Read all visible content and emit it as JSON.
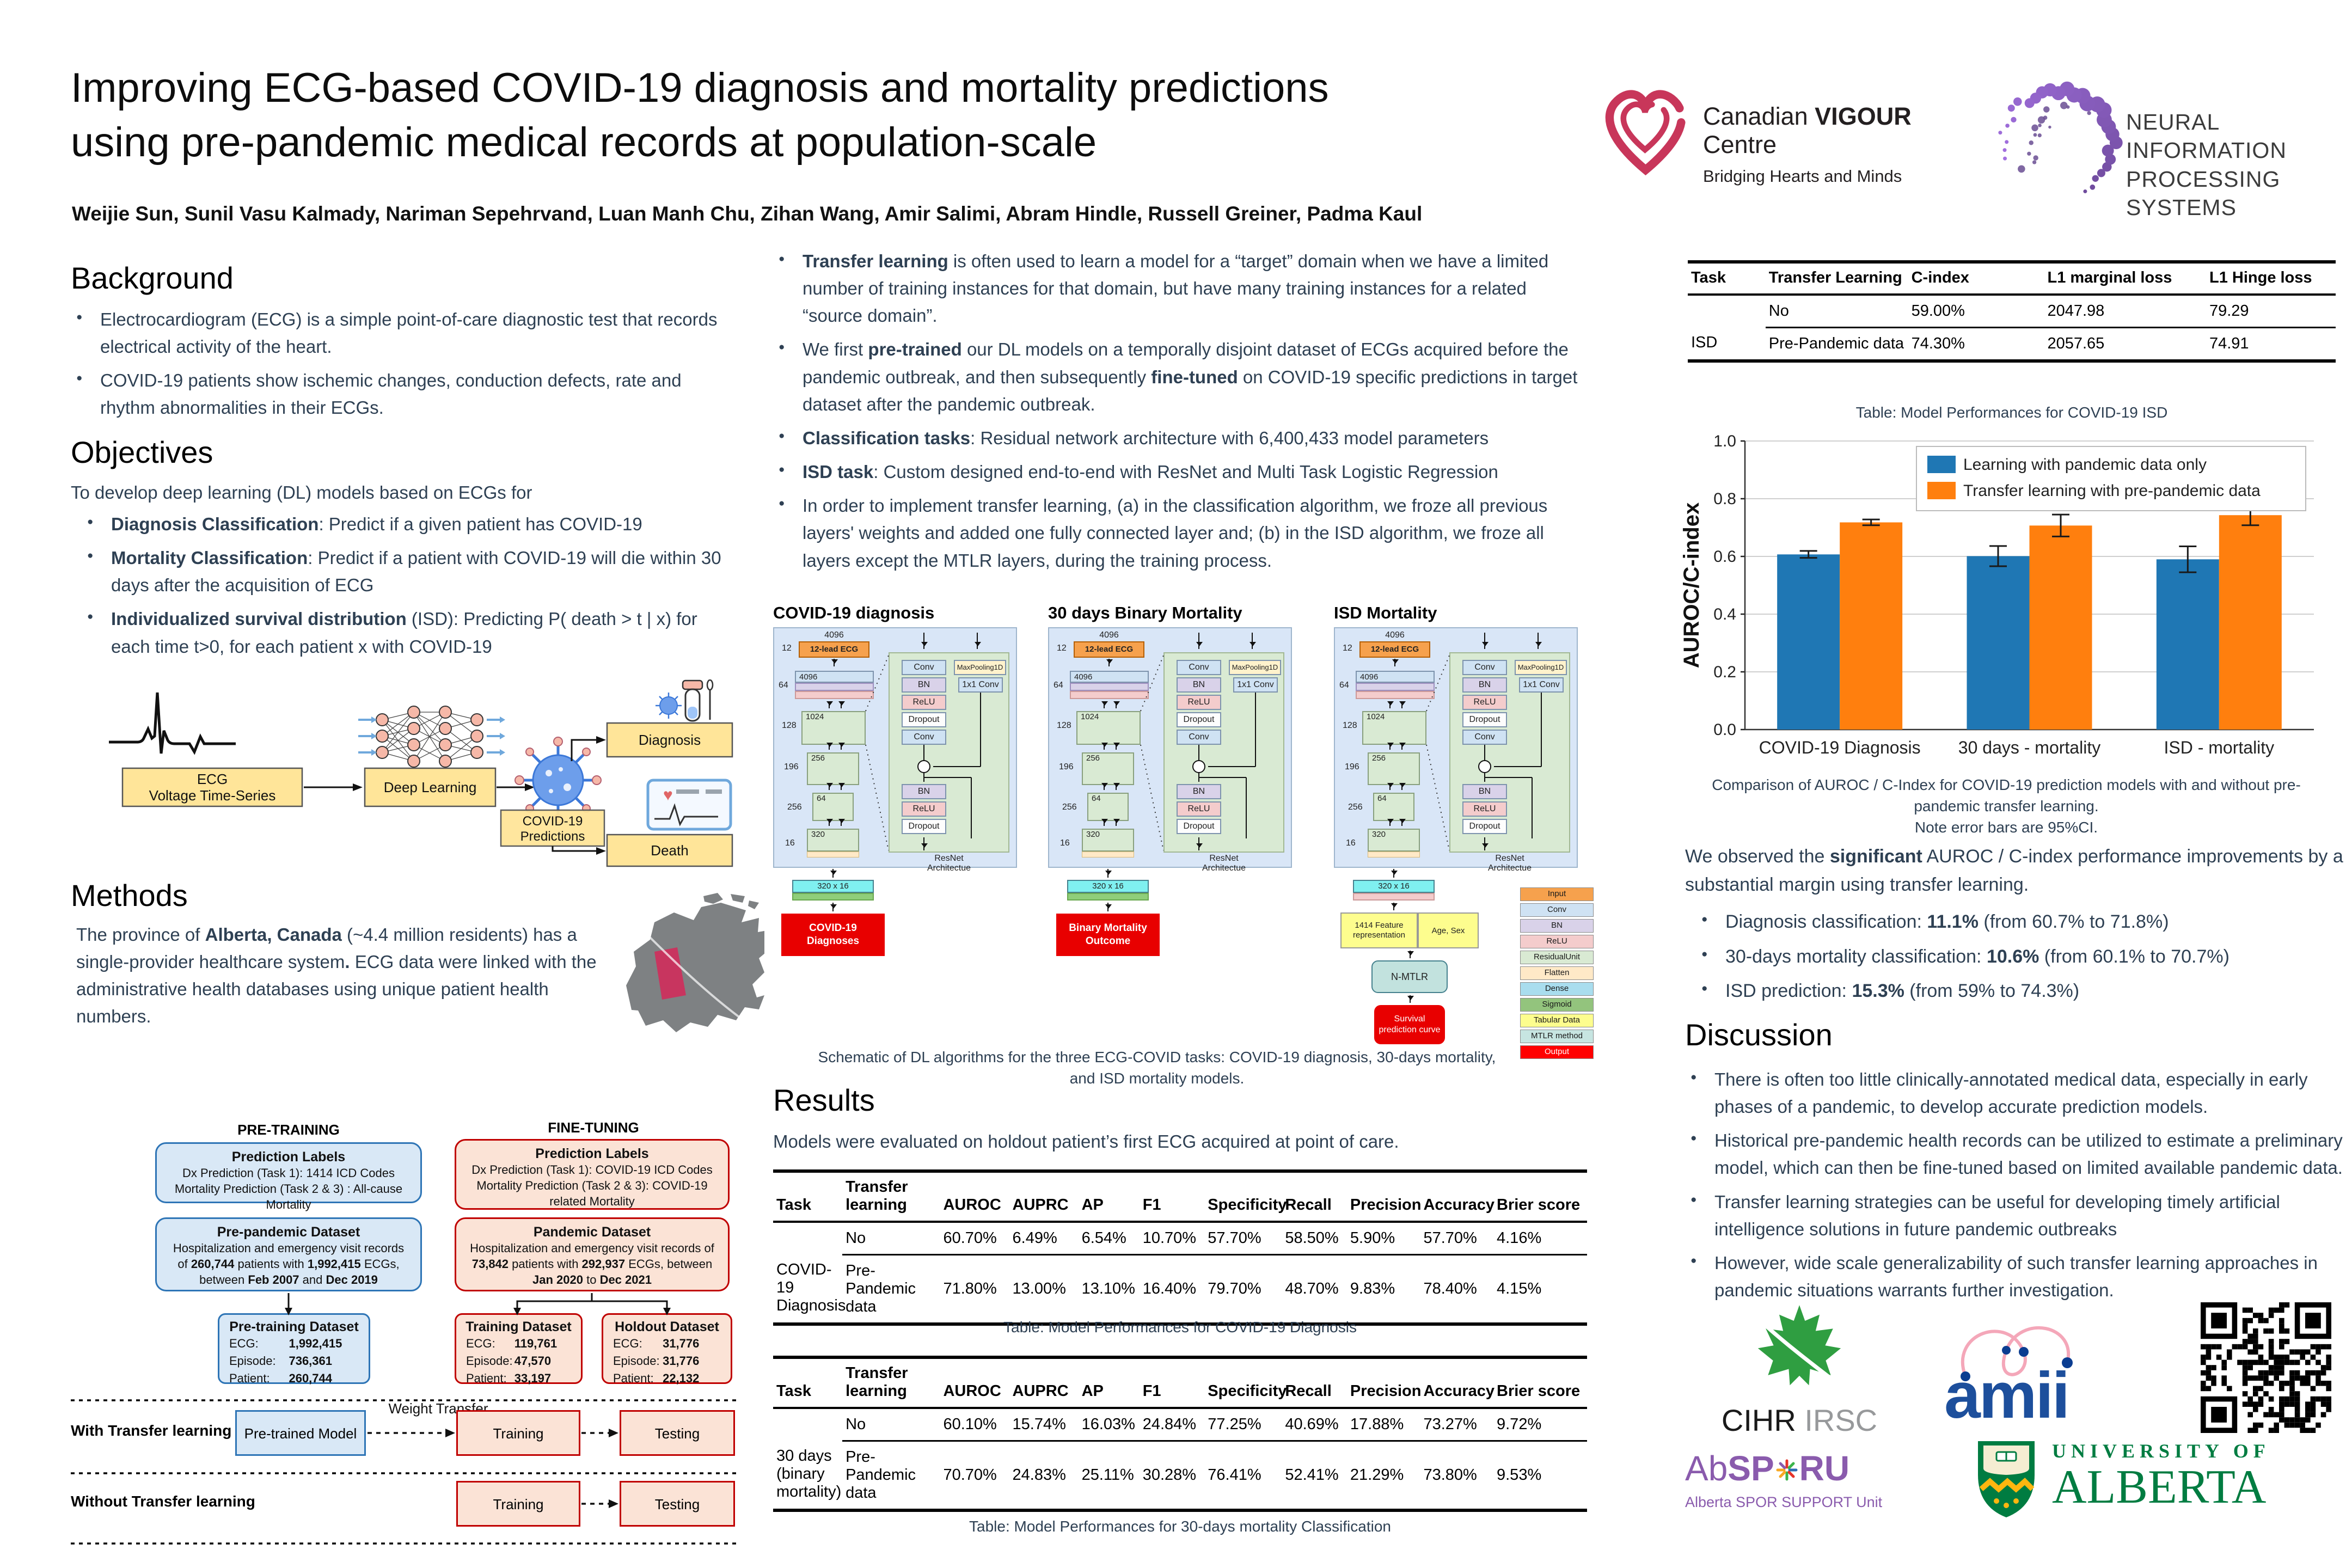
{
  "poster": {
    "title_line1": "Improving ECG-based COVID-19 diagnosis and mortality predictions",
    "title_line2": "using pre-pandemic medical records at population-scale",
    "authors": "Weijie Sun, Sunil Vasu Kalmady, Nariman Sepehrvand, Luan Manh Chu, Zihan Wang, Amir Salimi, Abram Hindle, Russell Greiner, Padma Kaul"
  },
  "logos": {
    "cvc": {
      "brand_pre": "Canadian ",
      "brand_bold": "VIGOUR",
      "brand_post": " Centre",
      "tagline": "Bridging Hearts and Minds"
    },
    "neurips": {
      "line1": "NEURAL INFORMATION",
      "line2": "PROCESSING SYSTEMS"
    },
    "cihr": {
      "text1": "CIHR",
      "text2": "IRSC"
    },
    "amii": {
      "text": "amii"
    },
    "absporu": {
      "part1": "Ab",
      "part2": "SP",
      "part3": "RU",
      "tagline": "Alberta SPOR SUPPORT Unit"
    },
    "uofa": {
      "line1": "UNIVERSITY OF",
      "line2": "ALBERTA"
    }
  },
  "background": {
    "heading": "Background",
    "bullets": [
      "Electrocardiogram (ECG) is a simple point-of-care diagnostic test that records electrical activity of the heart.",
      "COVID-19 patients show ischemic changes, conduction defects, rate and rhythm abnormalities in their ECGs."
    ]
  },
  "objectives": {
    "heading": "Objectives",
    "intro": "To develop deep learning (DL) models based on ECGs for",
    "bullets": [
      [
        {
          "t": "Diagnosis Classification",
          "b": true
        },
        {
          "t": ": Predict if a given patient has COVID-19"
        }
      ],
      [
        {
          "t": "Mortality Classification",
          "b": true
        },
        {
          "t": ": Predict if a patient with COVID-19 will die within 30 days after the acquisition of ECG"
        }
      ],
      [
        {
          "t": "Individualized survival distribution",
          "b": true
        },
        {
          "t": " (ISD): Predicting P( death > t | x) for each time t>0, for each patient x with COVID-19"
        }
      ]
    ]
  },
  "pipeline": {
    "ecg_label_1": "ECG",
    "ecg_label_2": "Voltage Time-Series",
    "dl_label": "Deep Learning",
    "pred_label_1": "COVID-19",
    "pred_label_2": "Predictions",
    "diagnosis_label": "Diagnosis",
    "death_label": "Death"
  },
  "methods": {
    "heading": "Methods",
    "para": [
      {
        "t": "The province of "
      },
      {
        "t": "Alberta, Canada",
        "b": true
      },
      {
        "t": " (~4.4 million residents) has a single-provider healthcare system"
      },
      {
        "t": ".",
        "b": true
      },
      {
        "t": " ECG data were linked with the administrative health databases using unique patient health numbers."
      }
    ]
  },
  "flowchart": {
    "pretraining_title": "PRE-TRAINING",
    "finetuning_title": "FINE-TUNING",
    "pre_labels_title": "Prediction Labels",
    "pre_labels_line1": "Dx Prediction (Task 1): 1414 ICD Codes",
    "pre_labels_line2": "Mortality Prediction (Task 2 & 3) : All-cause Mortality",
    "fine_labels_title": "Prediction Labels",
    "fine_labels_line1": "Dx Prediction (Task 1): COVID-19 ICD Codes",
    "fine_labels_line2": "Mortality Prediction (Task 2 & 3): COVID-19 related Mortality",
    "pre_dataset_title": "Pre-pandemic Dataset",
    "pre_dataset_body": [
      {
        "t": "Hospitalization and emergency visit records of "
      },
      {
        "t": "260,744",
        "b": true
      },
      {
        "t": " patients with "
      },
      {
        "t": "1,992,415",
        "b": true
      },
      {
        "t": " ECGs, between "
      },
      {
        "t": "Feb 2007",
        "b": true
      },
      {
        "t": " and "
      },
      {
        "t": "Dec 2019",
        "b": true
      }
    ],
    "pandemic_dataset_title": "Pandemic Dataset",
    "pandemic_dataset_body": [
      {
        "t": "Hospitalization and emergency visit records of "
      },
      {
        "t": "73,842",
        "b": true
      },
      {
        "t": " patients with "
      },
      {
        "t": "292,937",
        "b": true
      },
      {
        "t": " ECGs, between "
      },
      {
        "t": "Jan 2020",
        "b": true
      },
      {
        "t": " to "
      },
      {
        "t": "Dec 2021",
        "b": true
      }
    ],
    "pretraining_dataset_title": "Pre-training Dataset",
    "pretraining_dataset_rows": [
      [
        "ECG:",
        "1,992,415"
      ],
      [
        "Episode:",
        "736,361"
      ],
      [
        "Patient:",
        "260,744"
      ]
    ],
    "training_dataset_title": "Training Dataset",
    "training_dataset_rows": [
      [
        "ECG:",
        "119,761"
      ],
      [
        "Episode:",
        "47,570"
      ],
      [
        "Patient:",
        "33,197"
      ]
    ],
    "holdout_dataset_title": "Holdout Dataset",
    "holdout_dataset_rows": [
      [
        "ECG:",
        "31,776"
      ],
      [
        "Episode:",
        "31,776"
      ],
      [
        "Patient:",
        "22,132"
      ]
    ],
    "with_tl": "With Transfer learning",
    "without_tl": "Without Transfer learning",
    "pretrained_model": "Pre-trained Model",
    "weight_transfer": "Weight Transfer",
    "training": "Training",
    "testing": "Testing"
  },
  "middle_bullets": [
    [
      {
        "t": "Transfer learning",
        "b": true
      },
      {
        "t": " is often used to learn a model for a “target” domain when we have a limited number of training instances for that domain, but have many training instances for a related “source domain”."
      }
    ],
    [
      {
        "t": "We first "
      },
      {
        "t": "pre-trained",
        "b": true
      },
      {
        "t": " our DL models on a temporally disjoint dataset of ECGs acquired before the pandemic outbreak, and then subsequently "
      },
      {
        "t": "fine-tuned",
        "b": true
      },
      {
        "t": " on COVID-19 specific predictions in target dataset after the pandemic outbreak."
      }
    ],
    [
      {
        "t": "Classification tasks",
        "b": true
      },
      {
        "t": ": Residual network architecture with 6,400,433 model parameters"
      }
    ],
    [
      {
        "t": "ISD task",
        "b": true
      },
      {
        "t": ": Custom designed end-to-end with ResNet and Multi Task Logistic Regression"
      }
    ],
    [
      {
        "t": "In order to implement transfer learning, (a) in the classification algorithm, we froze all previous layers' weights and added one fully connected layer and; (b) in the ISD algorithm, we froze all layers except the MTLR layers, during the training process."
      }
    ]
  ],
  "architectures": {
    "caption": "Schematic of DL algorithms for the  three ECG-COVID tasks: COVID-19 diagnosis, 30-days  mortality, and ISD mortality models.",
    "resnet_label": "ResNet\nArchitectue",
    "input_size": "4096",
    "input_label": "12-lead ECG",
    "input_channels": "12",
    "conv_size": "4096",
    "conv_channels": "64",
    "residual_units": [
      {
        "size": "1024",
        "ch": "128"
      },
      {
        "size": "256",
        "ch": "196"
      },
      {
        "size": "64",
        "ch": "256"
      },
      {
        "size": "320",
        "ch": "16"
      }
    ],
    "unit_ops": [
      "Conv",
      "BN",
      "ReLU",
      "Dropout",
      "Conv"
    ],
    "pool_op": "MaxPooling1D",
    "conv1x1": "1x1 Conv",
    "post_ops": [
      "BN",
      "ReLU",
      "Dropout"
    ],
    "dense_label": "320 x 16",
    "diagrams": [
      {
        "title": "COVID-19 diagnosis",
        "type": "cls",
        "output": "COVID-19 Diagnoses"
      },
      {
        "title": "30 days Binary Mortality",
        "type": "cls",
        "output": "Binary Mortality Outcome"
      },
      {
        "title": "ISD Mortality",
        "type": "isd",
        "feature": "1414 Feature representation",
        "tabular": "Age, Sex",
        "mtlr": "N-MTLR",
        "output": "Survival prediction curve"
      }
    ],
    "legend": [
      {
        "label": "Input",
        "color": "#F6A14D"
      },
      {
        "label": "Conv",
        "color": "#CFE2F3"
      },
      {
        "label": "BN",
        "color": "#D9D2E9"
      },
      {
        "label": "ReLU",
        "color": "#F4CCCC"
      },
      {
        "label": "ResidualUnit",
        "color": "#D9EAD3"
      },
      {
        "label": "Flatten",
        "color": "#FFE9C7"
      },
      {
        "label": "Dense",
        "color": "#A9DDEE"
      },
      {
        "label": "Sigmoid",
        "color": "#93C47D"
      },
      {
        "label": "Tabular Data",
        "color": "#FDFD8E"
      },
      {
        "label": "MTLR method",
        "color": "#C7E5E1"
      },
      {
        "label": "Output",
        "color": "#FF0000"
      }
    ]
  },
  "results": {
    "heading": "Results",
    "intro": "Models were evaluated on holdout patient’s first ECG acquired at point of care.",
    "diagnosis_table": {
      "headers": [
        "Task",
        "Transfer learning",
        "AUROC",
        "AUPRC",
        "AP",
        "F1",
        "Specificity",
        "Recall",
        "Precision",
        "Accuracy",
        "Brier score"
      ],
      "task": "COVID-19\nDiagnosis",
      "rows": [
        [
          "No",
          "60.70%",
          "6.49%",
          "6.54%",
          "10.70%",
          "57.70%",
          "58.50%",
          "5.90%",
          "57.70%",
          "4.16%"
        ],
        [
          "Pre-Pandemic data",
          "71.80%",
          "13.00%",
          "13.10%",
          "16.40%",
          "79.70%",
          "48.70%",
          "9.83%",
          "78.40%",
          "4.15%"
        ]
      ],
      "caption": "Table: Model Performances for COVID-19 Diagnosis"
    },
    "mortality_table": {
      "headers": [
        "Task",
        "Transfer learning",
        "AUROC",
        "AUPRC",
        "AP",
        "F1",
        "Specificity",
        "Recall",
        "Precision",
        "Accuracy",
        "Brier score"
      ],
      "task": "30 days\n(binary\nmortality)",
      "rows": [
        [
          "No",
          "60.10%",
          "15.74%",
          "16.03%",
          "24.84%",
          "77.25%",
          "40.69%",
          "17.88%",
          "73.27%",
          "9.72%"
        ],
        [
          "Pre- Pandemic data",
          "70.70%",
          "24.83%",
          "25.11%",
          "30.28%",
          "76.41%",
          "52.41%",
          "21.29%",
          "73.80%",
          "9.53%"
        ]
      ],
      "caption": "Table: Model Performances for 30-days mortality Classification"
    }
  },
  "isd_table": {
    "headers": [
      "Task",
      "Transfer Learning",
      "C-index",
      "L1 marginal loss",
      "L1 Hinge loss"
    ],
    "task": "ISD",
    "rows": [
      [
        "No",
        "59.00%",
        "2047.98",
        "79.29"
      ],
      [
        "Pre-Pandemic data",
        "74.30%",
        "2057.65",
        "74.91"
      ]
    ],
    "caption": "Table: Model Performances for COVID-19 ISD"
  },
  "chart_data": {
    "type": "bar",
    "categories": [
      "COVID-19 Diagnosis",
      "30 days - mortality",
      "ISD - mortality"
    ],
    "series": [
      {
        "name": "Learning with pandemic data only",
        "color": "#1f77b4",
        "values": [
          0.607,
          0.601,
          0.59
        ],
        "errors": [
          0.012,
          0.035,
          0.045
        ]
      },
      {
        "name": "Transfer learning with pre-pandemic data",
        "color": "#ff7f0e",
        "values": [
          0.718,
          0.707,
          0.743
        ],
        "errors": [
          0.01,
          0.038,
          0.035
        ]
      }
    ],
    "ylabel": "AUROC/C-index",
    "xlabel": "",
    "title": "",
    "ylim": [
      0.0,
      1.0
    ],
    "yticks": [
      "0.0",
      "0.2",
      "0.4",
      "0.6",
      "0.8",
      "1.0"
    ],
    "grid": true,
    "legend_position": "upper center",
    "caption_line1": "Comparison of AUROC / C-Index for COVID-19 prediction models with and without pre-pandemic transfer learning.",
    "caption_line2": "Note error bars are 95%CI."
  },
  "findings": {
    "intro": [
      {
        "t": "We observed the "
      },
      {
        "t": "significant",
        "b": true
      },
      {
        "t": " AUROC / C-index performance improvements by a substantial margin using transfer learning."
      }
    ],
    "bullets": [
      [
        {
          "t": "Diagnosis classification: "
        },
        {
          "t": "11.1%",
          "b": true
        },
        {
          "t": " (from 60.7% to 71.8%)"
        }
      ],
      [
        {
          "t": "30-days mortality classification: "
        },
        {
          "t": "10.6%",
          "b": true
        },
        {
          "t": " (from 60.1% to 70.7%)"
        }
      ],
      [
        {
          "t": "ISD prediction: "
        },
        {
          "t": "15.3%",
          "b": true
        },
        {
          "t": " (from 59% to 74.3%)"
        }
      ]
    ]
  },
  "discussion": {
    "heading": "Discussion",
    "bullets": [
      "There is often too little clinically-annotated medical data, especially in early phases of a pandemic, to develop accurate prediction models.",
      "Historical pre-pandemic health records can be utilized to estimate a preliminary model, which can then be fine-tuned based on limited available pandemic data.",
      "Transfer learning strategies can be useful for developing timely artificial intelligence solutions in future pandemic outbreaks",
      "However, wide scale generalizability of such transfer learning approaches in pandemic situations warrants further investigation."
    ]
  },
  "icons": {
    "heart-icon": "♥",
    "virus-icon": "spiky-circle",
    "test-tube-icon": "vial-and-swab",
    "monitor-icon": "ecg-monitor",
    "neural-network-icon": "node-graph",
    "canada-map": "grey silhouette with Alberta highlighted",
    "qr-code": "qr grid",
    "maple-leaf-icon": "green maple leaf",
    "uofa-shield-icon": "green shield",
    "neurips-swirl-icon": "purple dot crescent",
    "cvc-heart-icon": "crimson double heart outline"
  }
}
